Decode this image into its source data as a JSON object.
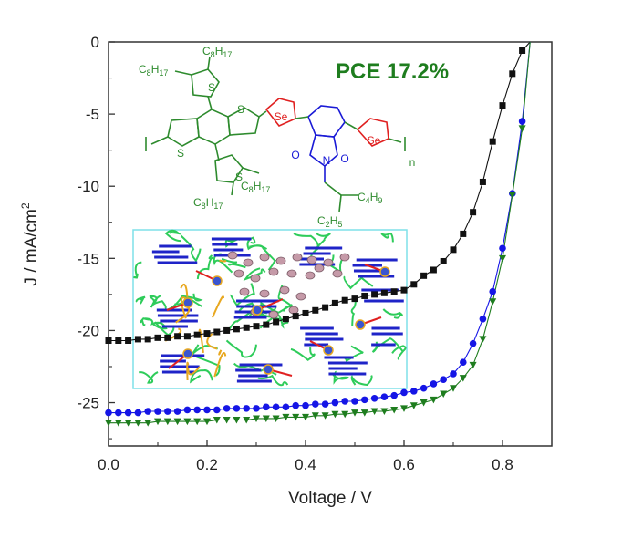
{
  "chart_data": {
    "type": "scatter",
    "xlabel": "Voltage / V",
    "ylabel": "J / mA/cm",
    "ylabel_superscript": "2",
    "xlim": [
      0.0,
      0.9
    ],
    "ylim": [
      -28,
      0
    ],
    "xticks": [
      0.0,
      0.2,
      0.4,
      0.6,
      0.8
    ],
    "xtick_labels": [
      "0.0",
      "0.2",
      "0.4",
      "0.6",
      "0.8"
    ],
    "yticks": [
      0,
      -5,
      -10,
      -15,
      -20,
      -25
    ],
    "ytick_labels": [
      "0",
      "-5",
      "-10",
      "-15",
      "-20",
      "-25"
    ],
    "grid": false,
    "annotation": "PCE 17.2%",
    "series": [
      {
        "color": "#111111",
        "marker": "square",
        "x": [
          0.0,
          0.02,
          0.04,
          0.06,
          0.08,
          0.1,
          0.12,
          0.14,
          0.16,
          0.18,
          0.2,
          0.22,
          0.24,
          0.26,
          0.28,
          0.3,
          0.32,
          0.34,
          0.36,
          0.38,
          0.4,
          0.42,
          0.44,
          0.46,
          0.48,
          0.5,
          0.52,
          0.54,
          0.56,
          0.58,
          0.6,
          0.62,
          0.64,
          0.66,
          0.68,
          0.7,
          0.72,
          0.74,
          0.76,
          0.78,
          0.8,
          0.82,
          0.84
        ],
        "y": [
          -20.7,
          -20.7,
          -20.7,
          -20.6,
          -20.6,
          -20.5,
          -20.5,
          -20.4,
          -20.4,
          -20.3,
          -20.2,
          -20.1,
          -20.0,
          -19.9,
          -19.8,
          -19.7,
          -19.6,
          -19.4,
          -19.2,
          -19.0,
          -18.8,
          -18.6,
          -18.4,
          -18.1,
          -17.9,
          -17.8,
          -17.6,
          -17.5,
          -17.4,
          -17.3,
          -17.2,
          -16.8,
          -16.2,
          -15.8,
          -15.2,
          -14.4,
          -13.3,
          -11.8,
          -9.7,
          -6.9,
          -4.4,
          -2.2,
          -0.6
        ]
      },
      {
        "color": "#1515e6",
        "marker": "circle",
        "x": [
          0.0,
          0.02,
          0.04,
          0.06,
          0.08,
          0.1,
          0.12,
          0.14,
          0.16,
          0.18,
          0.2,
          0.22,
          0.24,
          0.26,
          0.28,
          0.3,
          0.32,
          0.34,
          0.36,
          0.38,
          0.4,
          0.42,
          0.44,
          0.46,
          0.48,
          0.5,
          0.52,
          0.54,
          0.56,
          0.58,
          0.6,
          0.62,
          0.64,
          0.66,
          0.68,
          0.7,
          0.72,
          0.74,
          0.76,
          0.78,
          0.8,
          0.82,
          0.84
        ],
        "y": [
          -25.7,
          -25.7,
          -25.7,
          -25.7,
          -25.6,
          -25.6,
          -25.6,
          -25.6,
          -25.5,
          -25.5,
          -25.5,
          -25.5,
          -25.4,
          -25.4,
          -25.4,
          -25.4,
          -25.3,
          -25.3,
          -25.3,
          -25.2,
          -25.2,
          -25.1,
          -25.1,
          -25.0,
          -24.9,
          -24.9,
          -24.8,
          -24.7,
          -24.6,
          -24.5,
          -24.3,
          -24.2,
          -24.0,
          -23.7,
          -23.4,
          -23.0,
          -22.2,
          -20.9,
          -19.2,
          -17.3,
          -14.3,
          -10.5,
          -5.5
        ]
      },
      {
        "color": "#1e7d1e",
        "marker": "triangle-down",
        "x": [
          0.0,
          0.02,
          0.04,
          0.06,
          0.08,
          0.1,
          0.12,
          0.14,
          0.16,
          0.18,
          0.2,
          0.22,
          0.24,
          0.26,
          0.28,
          0.3,
          0.32,
          0.34,
          0.36,
          0.38,
          0.4,
          0.42,
          0.44,
          0.46,
          0.48,
          0.5,
          0.52,
          0.54,
          0.56,
          0.58,
          0.6,
          0.62,
          0.64,
          0.66,
          0.68,
          0.7,
          0.72,
          0.74,
          0.76,
          0.78,
          0.8,
          0.82,
          0.84
        ],
        "y": [
          -26.4,
          -26.4,
          -26.4,
          -26.4,
          -26.4,
          -26.3,
          -26.3,
          -26.3,
          -26.3,
          -26.3,
          -26.3,
          -26.2,
          -26.2,
          -26.2,
          -26.2,
          -26.1,
          -26.1,
          -26.1,
          -26.0,
          -26.0,
          -26.0,
          -25.9,
          -25.9,
          -25.8,
          -25.8,
          -25.7,
          -25.7,
          -25.6,
          -25.6,
          -25.5,
          -25.4,
          -25.2,
          -25.0,
          -24.8,
          -24.4,
          -24.0,
          -23.3,
          -22.4,
          -20.6,
          -18.0,
          -15.0,
          -10.6,
          -6.0
        ]
      }
    ]
  },
  "molecule": {
    "color": "#2e8b2e",
    "selenium_color": "#e02020",
    "imide_color": "#1a1ad6",
    "labels": {
      "c8h17_a": [
        "C",
        "8",
        "H",
        "17"
      ],
      "c8h17_b": [
        "C",
        "8",
        "H",
        "17"
      ],
      "c8h17_c": [
        "C",
        "8",
        "H",
        "17"
      ],
      "c8h17_d": [
        "C",
        "8",
        "H",
        "17"
      ],
      "c4h9": [
        "C",
        "4",
        "H",
        "9"
      ],
      "c2h5": [
        "C",
        "2",
        "H",
        "5"
      ],
      "s1": "S",
      "s2": "S",
      "s3": "S",
      "s4": "S",
      "se1": "Se",
      "se2": "Se",
      "n": "N",
      "o1": "O",
      "o2": "O",
      "repeat": "n"
    }
  },
  "inset": {
    "border_color": "#7fe0e8",
    "chain_color": "#2ecc5a",
    "backbone_color": "#1f24c8",
    "acceptor_color": "#e8a820",
    "domain_fill": "#c59aa8",
    "arrow_color": "#e02020"
  }
}
